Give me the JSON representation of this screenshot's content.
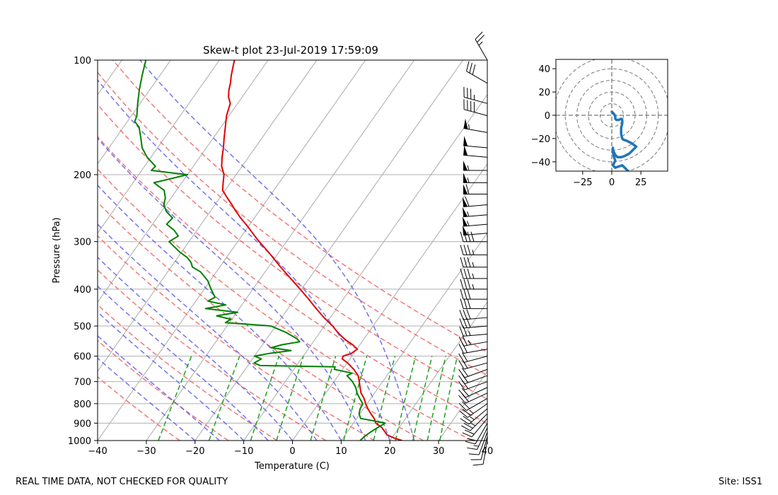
{
  "chart_data": [
    {
      "type": "line",
      "subtype": "skew-t",
      "title": "Skew-t plot 23-Jul-2019 17:59:09",
      "xlabel": "Temperature (C)",
      "ylabel": "Pressure (hPa)",
      "xlim": [
        -40,
        40
      ],
      "ylim": [
        1000,
        100
      ],
      "y_scale": "log",
      "x_ticks": [
        -40,
        -30,
        -20,
        -10,
        0,
        10,
        20,
        30,
        40
      ],
      "y_ticks": [
        100,
        200,
        300,
        400,
        500,
        600,
        700,
        800,
        900,
        1000
      ],
      "grid": true,
      "series": [
        {
          "role": "temperature",
          "color": "#e00000",
          "points": [
            [
              1000,
              22.5
            ],
            [
              985,
              20.5
            ],
            [
              965,
              18.5
            ],
            [
              950,
              17.8
            ],
            [
              925,
              16.5
            ],
            [
              900,
              14.6
            ],
            [
              875,
              13.6
            ],
            [
              850,
              12.2
            ],
            [
              825,
              10.9
            ],
            [
              800,
              9.7
            ],
            [
              775,
              8.6
            ],
            [
              750,
              7.2
            ],
            [
              725,
              6.2
            ],
            [
              700,
              5.2
            ],
            [
              675,
              4.1
            ],
            [
              650,
              2.3
            ],
            [
              625,
              0.1
            ],
            [
              610,
              -1.6
            ],
            [
              600,
              -1.8
            ],
            [
              590,
              -0.5
            ],
            [
              575,
              0.1
            ],
            [
              560,
              -1.5
            ],
            [
              545,
              -3.5
            ],
            [
              530,
              -5.2
            ],
            [
              515,
              -6.8
            ],
            [
              500,
              -8.3
            ],
            [
              475,
              -11.3
            ],
            [
              450,
              -14.2
            ],
            [
              425,
              -17.1
            ],
            [
              400,
              -20.3
            ],
            [
              375,
              -23.8
            ],
            [
              350,
              -27.5
            ],
            [
              325,
              -31.3
            ],
            [
              310,
              -33.8
            ],
            [
              300,
              -35.6
            ],
            [
              290,
              -37.3
            ],
            [
              275,
              -39.9
            ],
            [
              260,
              -42.8
            ],
            [
              250,
              -44.7
            ],
            [
              240,
              -46.5
            ],
            [
              230,
              -48.5
            ],
            [
              220,
              -50.5
            ],
            [
              210,
              -51.5
            ],
            [
              200,
              -52.5
            ],
            [
              190,
              -54.2
            ],
            [
              180,
              -55.4
            ],
            [
              170,
              -56.5
            ],
            [
              160,
              -57.8
            ],
            [
              150,
              -59.1
            ],
            [
              140,
              -60.5
            ],
            [
              130,
              -61.5
            ],
            [
              125,
              -62.8
            ],
            [
              120,
              -63.7
            ],
            [
              115,
              -64.4
            ],
            [
              110,
              -65.3
            ],
            [
              105,
              -66.1
            ],
            [
              100,
              -66.9
            ]
          ]
        },
        {
          "role": "dewpoint",
          "color": "#008000",
          "points": [
            [
              1000,
              13.9
            ],
            [
              975,
              14.2
            ],
            [
              950,
              14.8
            ],
            [
              925,
              15.6
            ],
            [
              900,
              16.5
            ],
            [
              890,
              14.5
            ],
            [
              875,
              10.8
            ],
            [
              850,
              9.8
            ],
            [
              825,
              9.3
            ],
            [
              800,
              9.1
            ],
            [
              775,
              7.7
            ],
            [
              750,
              6.4
            ],
            [
              725,
              5.3
            ],
            [
              700,
              3.8
            ],
            [
              675,
              1.8
            ],
            [
              665,
              2.5
            ],
            [
              650,
              -1.7
            ],
            [
              640,
              -1.9
            ],
            [
              635,
              -17.5
            ],
            [
              625,
              -19.1
            ],
            [
              610,
              -18.2
            ],
            [
              600,
              -20.0
            ],
            [
              590,
              -17.3
            ],
            [
              580,
              -13.3
            ],
            [
              570,
              -17.8
            ],
            [
              560,
              -16.0
            ],
            [
              550,
              -12.8
            ],
            [
              540,
              -13.8
            ],
            [
              520,
              -16.9
            ],
            [
              500,
              -21.0
            ],
            [
              490,
              -30.8
            ],
            [
              480,
              -30.2
            ],
            [
              470,
              -33.6
            ],
            [
              460,
              -29.8
            ],
            [
              450,
              -36.9
            ],
            [
              440,
              -33.3
            ],
            [
              430,
              -37.5
            ],
            [
              420,
              -36.6
            ],
            [
              400,
              -38.6
            ],
            [
              380,
              -40.5
            ],
            [
              360,
              -43.3
            ],
            [
              350,
              -45.6
            ],
            [
              340,
              -46.6
            ],
            [
              330,
              -48.1
            ],
            [
              320,
              -50.3
            ],
            [
              300,
              -54.1
            ],
            [
              290,
              -53.0
            ],
            [
              280,
              -54.7
            ],
            [
              270,
              -57.1
            ],
            [
              260,
              -56.8
            ],
            [
              250,
              -59.0
            ],
            [
              240,
              -60.5
            ],
            [
              230,
              -61.2
            ],
            [
              220,
              -62.5
            ],
            [
              210,
              -65.7
            ],
            [
              200,
              -60.0
            ],
            [
              195,
              -68.0
            ],
            [
              190,
              -67.8
            ],
            [
              180,
              -70.8
            ],
            [
              170,
              -73.2
            ],
            [
              160,
              -74.9
            ],
            [
              150,
              -76.8
            ],
            [
              145,
              -78.5
            ],
            [
              140,
              -78.9
            ],
            [
              130,
              -80.5
            ],
            [
              120,
              -82.1
            ],
            [
              110,
              -83.6
            ],
            [
              100,
              -85.1
            ]
          ]
        }
      ],
      "reference_lines": [
        {
          "name": "isotherms",
          "color": "#aaaaaa",
          "values": [
            -110,
            -100,
            -90,
            -80,
            -70,
            -60,
            -50,
            -40,
            -30,
            -20,
            -10,
            0,
            10,
            20,
            30,
            40
          ]
        },
        {
          "name": "dry_adiabats",
          "color": "#f06060",
          "theta_K": [
            250,
            260,
            270,
            280,
            290,
            300,
            310,
            320,
            330,
            340,
            350
          ]
        },
        {
          "name": "moist_adiabats",
          "color": "#5a5aee",
          "start_temp_C": [
            -20,
            -15,
            -10,
            -5,
            0,
            5,
            10,
            15,
            20,
            25
          ]
        },
        {
          "name": "mixing_ratio_lines",
          "color": "#22a022",
          "w_gkg": [
            0.4,
            1,
            2,
            3,
            5,
            8,
            12,
            16,
            20,
            24,
            28
          ]
        }
      ],
      "wind_barbs": [
        {
          "p": 1000,
          "speed_kt": 8,
          "dir": 190
        },
        {
          "p": 975,
          "speed_kt": 10,
          "dir": 195
        },
        {
          "p": 950,
          "speed_kt": 12,
          "dir": 200
        },
        {
          "p": 925,
          "speed_kt": 15,
          "dir": 205
        },
        {
          "p": 900,
          "speed_kt": 18,
          "dir": 210
        },
        {
          "p": 875,
          "speed_kt": 22,
          "dir": 220
        },
        {
          "p": 850,
          "speed_kt": 25,
          "dir": 225
        },
        {
          "p": 825,
          "speed_kt": 25,
          "dir": 230
        },
        {
          "p": 800,
          "speed_kt": 25,
          "dir": 235
        },
        {
          "p": 775,
          "speed_kt": 22,
          "dir": 240
        },
        {
          "p": 750,
          "speed_kt": 20,
          "dir": 245
        },
        {
          "p": 725,
          "speed_kt": 20,
          "dir": 245
        },
        {
          "p": 700,
          "speed_kt": 22,
          "dir": 250
        },
        {
          "p": 675,
          "speed_kt": 22,
          "dir": 250
        },
        {
          "p": 650,
          "speed_kt": 20,
          "dir": 250
        },
        {
          "p": 625,
          "speed_kt": 20,
          "dir": 255
        },
        {
          "p": 600,
          "speed_kt": 20,
          "dir": 255
        },
        {
          "p": 575,
          "speed_kt": 22,
          "dir": 260
        },
        {
          "p": 550,
          "speed_kt": 25,
          "dir": 260
        },
        {
          "p": 525,
          "speed_kt": 25,
          "dir": 265
        },
        {
          "p": 500,
          "speed_kt": 28,
          "dir": 265
        },
        {
          "p": 475,
          "speed_kt": 30,
          "dir": 265
        },
        {
          "p": 450,
          "speed_kt": 30,
          "dir": 270
        },
        {
          "p": 425,
          "speed_kt": 32,
          "dir": 270
        },
        {
          "p": 400,
          "speed_kt": 35,
          "dir": 270
        },
        {
          "p": 375,
          "speed_kt": 35,
          "dir": 270
        },
        {
          "p": 350,
          "speed_kt": 35,
          "dir": 270
        },
        {
          "p": 325,
          "speed_kt": 35,
          "dir": 270
        },
        {
          "p": 300,
          "speed_kt": 40,
          "dir": 270
        },
        {
          "p": 285,
          "speed_kt": 50,
          "dir": 265
        },
        {
          "p": 270,
          "speed_kt": 55,
          "dir": 265
        },
        {
          "p": 255,
          "speed_kt": 55,
          "dir": 265
        },
        {
          "p": 240,
          "speed_kt": 60,
          "dir": 265
        },
        {
          "p": 225,
          "speed_kt": 60,
          "dir": 270
        },
        {
          "p": 210,
          "speed_kt": 55,
          "dir": 270
        },
        {
          "p": 195,
          "speed_kt": 55,
          "dir": 270
        },
        {
          "p": 180,
          "speed_kt": 50,
          "dir": 275
        },
        {
          "p": 170,
          "speed_kt": 50,
          "dir": 275
        },
        {
          "p": 155,
          "speed_kt": 55,
          "dir": 280
        },
        {
          "p": 140,
          "speed_kt": 40,
          "dir": 285
        },
        {
          "p": 130,
          "speed_kt": 35,
          "dir": 285
        },
        {
          "p": 115,
          "speed_kt": 30,
          "dir": 300
        },
        {
          "p": 100,
          "speed_kt": 25,
          "dir": 330
        }
      ]
    },
    {
      "type": "line",
      "subtype": "hodograph",
      "xlim": [
        -48,
        48
      ],
      "ylim": [
        -48,
        48
      ],
      "x_ticks": [
        -25,
        0,
        25
      ],
      "y_ticks": [
        -40,
        -20,
        0,
        20,
        40
      ],
      "ring_spacing": 10,
      "rings": [
        10,
        20,
        30,
        40,
        50
      ],
      "color": "#1f77b4",
      "points": [
        [
          0,
          3
        ],
        [
          2,
          1
        ],
        [
          3,
          -1
        ],
        [
          3,
          -3
        ],
        [
          4,
          -4
        ],
        [
          6,
          -4
        ],
        [
          8,
          -3
        ],
        [
          9,
          -4
        ],
        [
          9,
          -7
        ],
        [
          8,
          -11
        ],
        [
          8,
          -16
        ],
        [
          9,
          -20
        ],
        [
          10,
          -21
        ],
        [
          13,
          -22
        ],
        [
          17,
          -24
        ],
        [
          21,
          -27
        ],
        [
          18,
          -30
        ],
        [
          15,
          -33
        ],
        [
          11,
          -35
        ],
        [
          8,
          -36
        ],
        [
          5,
          -36
        ],
        [
          3,
          -34
        ],
        [
          1,
          -30
        ],
        [
          1,
          -28
        ],
        [
          1,
          -32
        ],
        [
          2,
          -36
        ],
        [
          3,
          -39
        ],
        [
          2,
          -41
        ],
        [
          1,
          -43
        ],
        [
          3,
          -45
        ],
        [
          6,
          -44
        ],
        [
          9,
          -43
        ],
        [
          12,
          -46
        ],
        [
          15,
          -49
        ]
      ]
    }
  ],
  "footer": {
    "left": "REAL TIME DATA, NOT CHECKED FOR QUALITY",
    "right": "Site: ISS1"
  }
}
